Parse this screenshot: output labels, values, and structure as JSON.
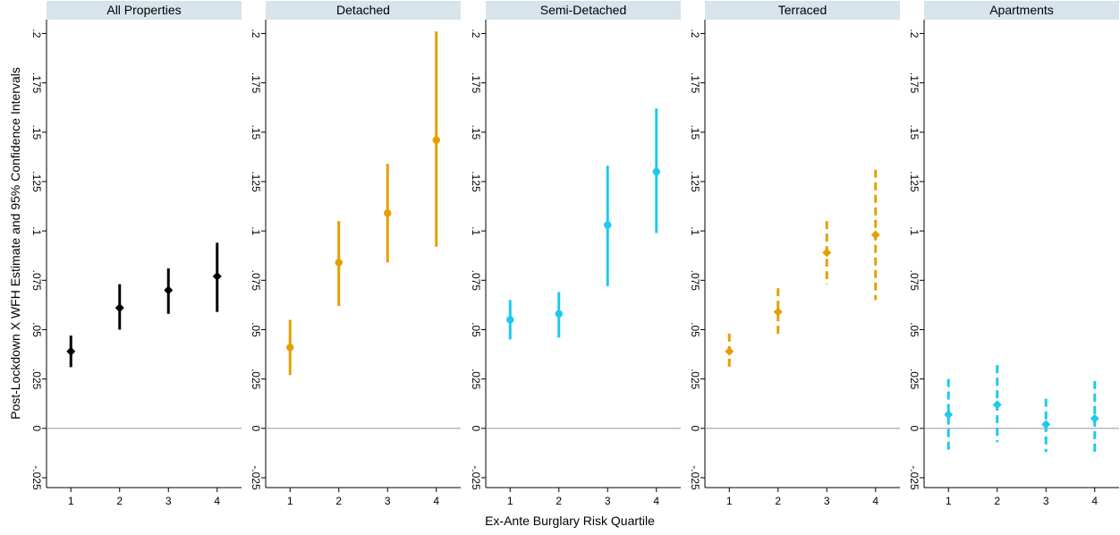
{
  "chart_data": {
    "type": "scatter",
    "subtype": "coefficient-plot-with-confidence-intervals",
    "ylabel": "Post-Lockdown X WFH Estimate and 95% Confidence Intervals",
    "xlabel": "Ex-Ante Burglary Risk Quartile",
    "x_ticks": [
      "1",
      "2",
      "3",
      "4"
    ],
    "y_ticks": [
      ".2",
      ".175",
      ".15",
      ".125",
      ".1",
      ".075",
      ".05",
      ".025",
      "0",
      "-.025"
    ],
    "ylim": [
      -0.03,
      0.207
    ],
    "reference_line": 0,
    "strip_color": "#d8e4ec",
    "panels": [
      {
        "title": "All Properties",
        "color": "#000000",
        "marker": "diamond",
        "ci_style": "solid",
        "points": [
          {
            "x": 1,
            "y": 0.039,
            "lo": 0.031,
            "hi": 0.047
          },
          {
            "x": 2,
            "y": 0.061,
            "lo": 0.05,
            "hi": 0.073
          },
          {
            "x": 3,
            "y": 0.07,
            "lo": 0.058,
            "hi": 0.081
          },
          {
            "x": 4,
            "y": 0.077,
            "lo": 0.059,
            "hi": 0.094
          }
        ]
      },
      {
        "title": "Detached",
        "color": "#e69f00",
        "marker": "circle",
        "ci_style": "solid",
        "points": [
          {
            "x": 1,
            "y": 0.041,
            "lo": 0.027,
            "hi": 0.055
          },
          {
            "x": 2,
            "y": 0.084,
            "lo": 0.062,
            "hi": 0.105
          },
          {
            "x": 3,
            "y": 0.109,
            "lo": 0.084,
            "hi": 0.134
          },
          {
            "x": 4,
            "y": 0.146,
            "lo": 0.092,
            "hi": 0.201
          }
        ]
      },
      {
        "title": "Semi-Detached",
        "color": "#1ec8f0",
        "marker": "circle",
        "ci_style": "solid",
        "points": [
          {
            "x": 1,
            "y": 0.055,
            "lo": 0.045,
            "hi": 0.065
          },
          {
            "x": 2,
            "y": 0.058,
            "lo": 0.046,
            "hi": 0.069
          },
          {
            "x": 3,
            "y": 0.103,
            "lo": 0.072,
            "hi": 0.133
          },
          {
            "x": 4,
            "y": 0.13,
            "lo": 0.099,
            "hi": 0.162
          }
        ]
      },
      {
        "title": "Terraced",
        "color": "#e69f00",
        "marker": "diamond",
        "ci_style": "dashed",
        "points": [
          {
            "x": 1,
            "y": 0.039,
            "lo": 0.029,
            "hi": 0.048
          },
          {
            "x": 2,
            "y": 0.059,
            "lo": 0.047,
            "hi": 0.071
          },
          {
            "x": 3,
            "y": 0.089,
            "lo": 0.073,
            "hi": 0.105
          },
          {
            "x": 4,
            "y": 0.098,
            "lo": 0.065,
            "hi": 0.131
          }
        ]
      },
      {
        "title": "Apartments",
        "color": "#1ec8f0",
        "marker": "diamond",
        "ci_style": "dashed",
        "points": [
          {
            "x": 1,
            "y": 0.007,
            "lo": -0.011,
            "hi": 0.025
          },
          {
            "x": 2,
            "y": 0.012,
            "lo": -0.007,
            "hi": 0.032
          },
          {
            "x": 3,
            "y": 0.002,
            "lo": -0.012,
            "hi": 0.015
          },
          {
            "x": 4,
            "y": 0.005,
            "lo": -0.014,
            "hi": 0.024
          }
        ]
      }
    ]
  }
}
